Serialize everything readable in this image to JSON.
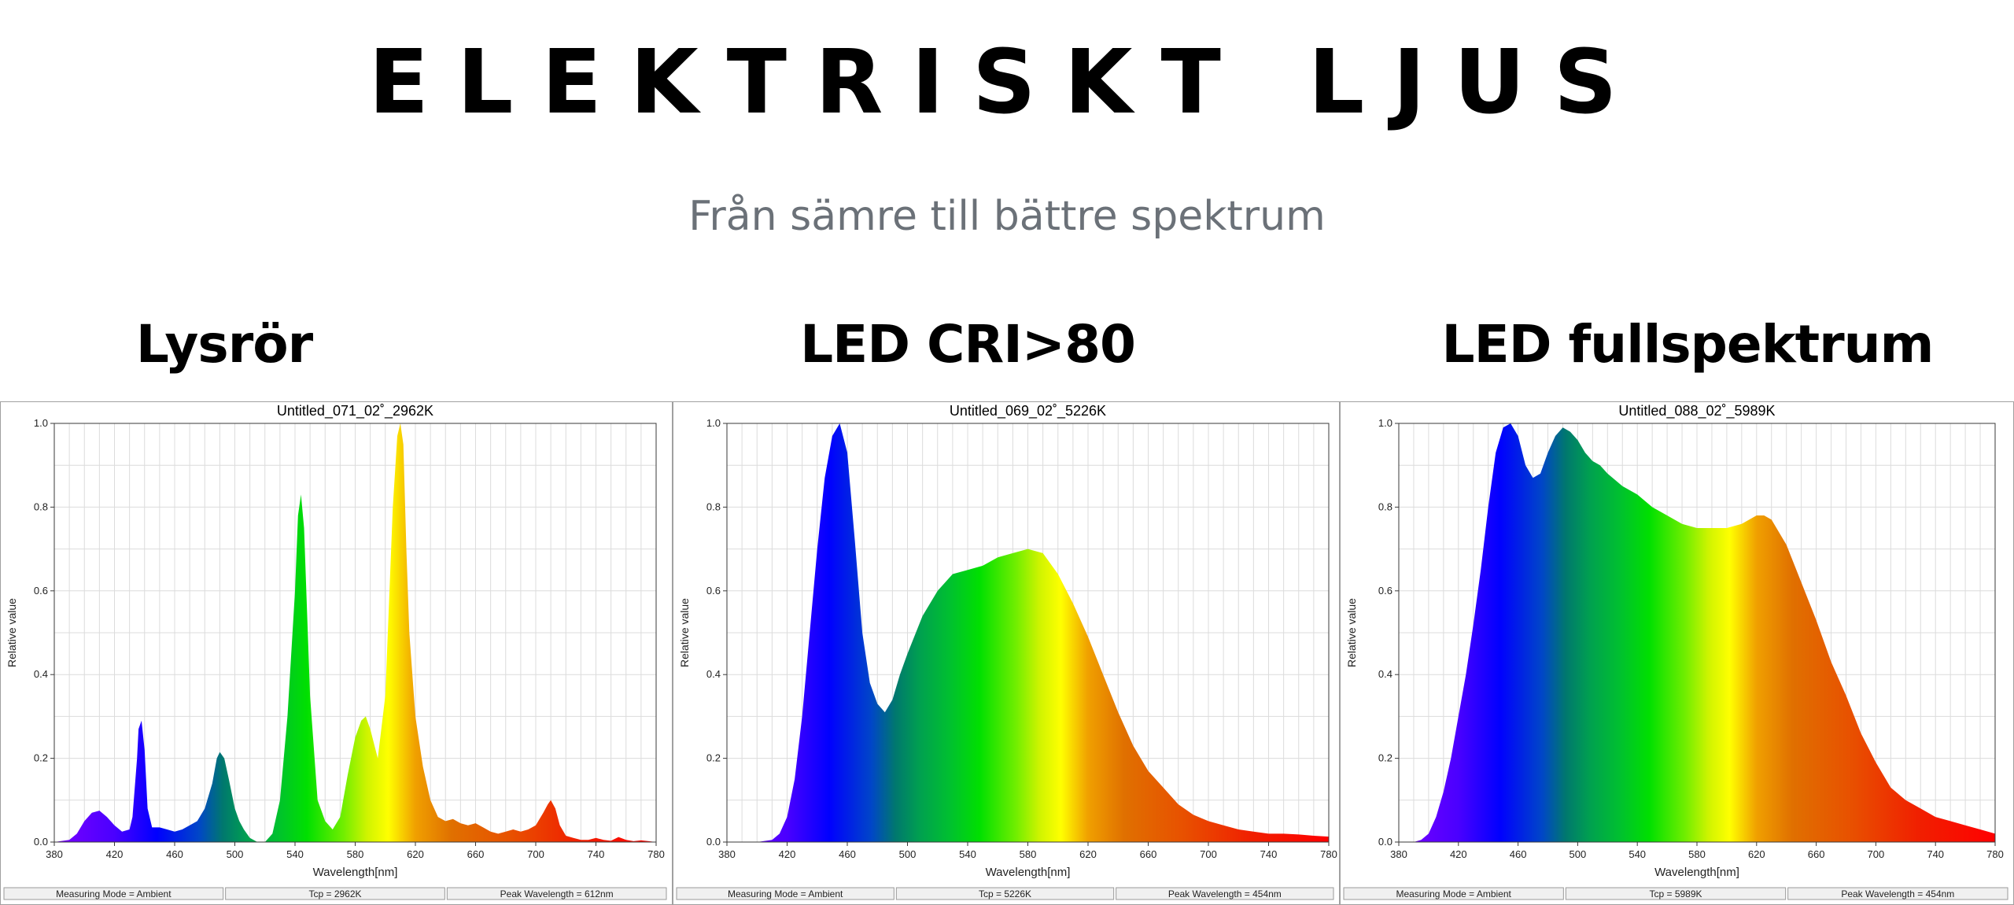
{
  "page": {
    "title": "ELEKTRISKT LJUS",
    "subtitle": "Från sämre till bättre spektrum"
  },
  "panels": [
    {
      "heading": "Lysrör"
    },
    {
      "heading": "LED CRI>80"
    },
    {
      "heading": "LED fullspektrum"
    }
  ],
  "chart_data": [
    {
      "type": "area",
      "title": "Untitled_071_02˚_2962K",
      "xlabel": "Wavelength[nm]",
      "ylabel": "Relative value",
      "xlim": [
        380,
        780
      ],
      "ylim": [
        0,
        1.0
      ],
      "x_ticks": [
        380,
        420,
        460,
        500,
        540,
        580,
        620,
        660,
        700,
        740,
        780
      ],
      "y_ticks": [
        "0.0",
        "0.2",
        "0.4",
        "0.6",
        "0.8",
        "1.0"
      ],
      "grid": true,
      "fill": "spectral-gradient",
      "x": [
        380,
        390,
        395,
        400,
        405,
        410,
        415,
        420,
        425,
        430,
        432,
        435,
        436,
        438,
        440,
        442,
        445,
        450,
        455,
        460,
        465,
        470,
        475,
        480,
        485,
        488,
        490,
        493,
        496,
        500,
        503,
        506,
        510,
        515,
        520,
        525,
        530,
        535,
        540,
        542,
        544,
        546,
        548,
        550,
        555,
        560,
        565,
        570,
        575,
        580,
        584,
        587,
        590,
        595,
        600,
        605,
        608,
        610,
        612,
        614,
        616,
        620,
        625,
        630,
        635,
        640,
        645,
        650,
        655,
        660,
        665,
        670,
        675,
        680,
        685,
        690,
        695,
        700,
        705,
        708,
        710,
        713,
        716,
        720,
        725,
        730,
        735,
        740,
        745,
        750,
        755,
        760,
        765,
        770,
        775,
        780
      ],
      "values": [
        0,
        0.005,
        0.02,
        0.05,
        0.07,
        0.075,
        0.06,
        0.04,
        0.025,
        0.03,
        0.06,
        0.2,
        0.27,
        0.29,
        0.22,
        0.08,
        0.035,
        0.035,
        0.03,
        0.025,
        0.03,
        0.04,
        0.05,
        0.08,
        0.14,
        0.2,
        0.215,
        0.2,
        0.15,
        0.08,
        0.05,
        0.03,
        0.01,
        0,
        0,
        0.02,
        0.1,
        0.3,
        0.6,
        0.78,
        0.83,
        0.75,
        0.55,
        0.35,
        0.1,
        0.05,
        0.03,
        0.06,
        0.16,
        0.25,
        0.29,
        0.3,
        0.27,
        0.2,
        0.35,
        0.8,
        0.97,
        1.0,
        0.95,
        0.7,
        0.5,
        0.3,
        0.18,
        0.1,
        0.06,
        0.05,
        0.055,
        0.045,
        0.04,
        0.045,
        0.035,
        0.025,
        0.02,
        0.025,
        0.03,
        0.025,
        0.03,
        0.04,
        0.07,
        0.09,
        0.1,
        0.08,
        0.04,
        0.015,
        0.01,
        0.005,
        0.005,
        0.01,
        0.005,
        0.003,
        0.012,
        0.005,
        0.002,
        0.004,
        0.002,
        0
      ],
      "status": [
        "Measuring Mode = Ambient",
        "Tcp = 2962K",
        "Peak Wavelength = 612nm"
      ]
    },
    {
      "type": "area",
      "title": "Untitled_069_02˚_5226K",
      "xlabel": "Wavelength[nm]",
      "ylabel": "Relative value",
      "xlim": [
        380,
        780
      ],
      "ylim": [
        0,
        1.0
      ],
      "x_ticks": [
        380,
        420,
        460,
        500,
        540,
        580,
        620,
        660,
        700,
        740,
        780
      ],
      "y_ticks": [
        "0.0",
        "0.2",
        "0.4",
        "0.6",
        "0.8",
        "1.0"
      ],
      "grid": true,
      "fill": "spectral-gradient",
      "x": [
        380,
        400,
        410,
        415,
        420,
        425,
        430,
        435,
        440,
        445,
        450,
        455,
        460,
        465,
        470,
        475,
        480,
        485,
        490,
        495,
        500,
        510,
        520,
        530,
        540,
        550,
        560,
        570,
        580,
        590,
        600,
        610,
        620,
        630,
        640,
        650,
        660,
        670,
        680,
        690,
        700,
        710,
        720,
        730,
        740,
        750,
        760,
        770,
        780
      ],
      "values": [
        0,
        0,
        0.005,
        0.02,
        0.06,
        0.15,
        0.3,
        0.5,
        0.7,
        0.87,
        0.97,
        1.0,
        0.93,
        0.72,
        0.5,
        0.38,
        0.33,
        0.31,
        0.34,
        0.4,
        0.45,
        0.54,
        0.6,
        0.64,
        0.65,
        0.66,
        0.68,
        0.69,
        0.7,
        0.69,
        0.64,
        0.57,
        0.49,
        0.4,
        0.31,
        0.23,
        0.17,
        0.13,
        0.09,
        0.065,
        0.05,
        0.04,
        0.03,
        0.025,
        0.02,
        0.02,
        0.018,
        0.015,
        0.013
      ],
      "status": [
        "Measuring Mode = Ambient",
        "Tcp = 5226K",
        "Peak Wavelength = 454nm"
      ]
    },
    {
      "type": "area",
      "title": "Untitled_088_02˚_5989K",
      "xlabel": "Wavelength[nm]",
      "ylabel": "Relative value",
      "xlim": [
        380,
        780
      ],
      "ylim": [
        0,
        1.0
      ],
      "x_ticks": [
        380,
        420,
        460,
        500,
        540,
        580,
        620,
        660,
        700,
        740,
        780
      ],
      "y_ticks": [
        "0.0",
        "0.2",
        "0.4",
        "0.6",
        "0.8",
        "1.0"
      ],
      "grid": true,
      "fill": "spectral-gradient",
      "x": [
        380,
        390,
        395,
        400,
        405,
        410,
        415,
        420,
        425,
        430,
        435,
        440,
        445,
        450,
        455,
        460,
        465,
        470,
        475,
        480,
        485,
        490,
        495,
        500,
        505,
        510,
        515,
        520,
        530,
        540,
        550,
        560,
        570,
        580,
        590,
        600,
        610,
        620,
        625,
        630,
        640,
        650,
        660,
        670,
        680,
        690,
        700,
        710,
        720,
        730,
        740,
        750,
        760,
        770,
        780
      ],
      "values": [
        0,
        0,
        0.005,
        0.02,
        0.06,
        0.12,
        0.2,
        0.3,
        0.4,
        0.52,
        0.65,
        0.8,
        0.93,
        0.99,
        1.0,
        0.97,
        0.9,
        0.87,
        0.88,
        0.93,
        0.97,
        0.99,
        0.98,
        0.96,
        0.93,
        0.91,
        0.9,
        0.88,
        0.85,
        0.83,
        0.8,
        0.78,
        0.76,
        0.75,
        0.75,
        0.75,
        0.76,
        0.78,
        0.78,
        0.77,
        0.71,
        0.62,
        0.53,
        0.43,
        0.35,
        0.26,
        0.19,
        0.13,
        0.1,
        0.08,
        0.06,
        0.05,
        0.04,
        0.03,
        0.02
      ],
      "status": [
        "Measuring Mode = Ambient",
        "Tcp = 5989K",
        "Peak Wavelength = 454nm"
      ]
    }
  ]
}
